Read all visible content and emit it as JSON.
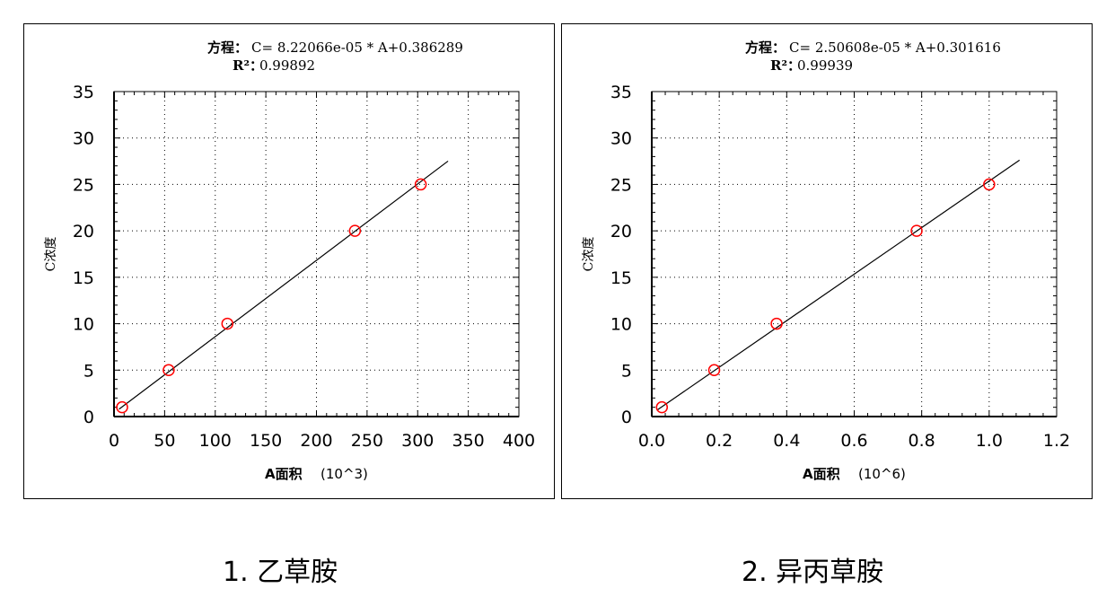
{
  "chart_data": [
    {
      "type": "scatter",
      "equation_label": "方程：",
      "equation": "C= 8.22066e-05 * A+0.386289",
      "r2_label": "R²：",
      "r2": "0.99892",
      "xlabel": "A面积",
      "xunit": "(10^3)",
      "ylabel": "C浓度",
      "xlim": [
        0,
        400
      ],
      "ylim": [
        0,
        35
      ],
      "xticks": [
        "0",
        "50",
        "100",
        "150",
        "200",
        "250",
        "300",
        "350",
        "400"
      ],
      "yticks": [
        "0",
        "5",
        "10",
        "15",
        "20",
        "25",
        "30",
        "35"
      ],
      "grid": true,
      "points": [
        {
          "x": 8,
          "y": 1.0
        },
        {
          "x": 54,
          "y": 5.0
        },
        {
          "x": 112,
          "y": 10.0
        },
        {
          "x": 238,
          "y": 20.0
        },
        {
          "x": 303,
          "y": 25.0
        }
      ],
      "fit": {
        "slope": 0.0822066,
        "intercept": 0.386289,
        "x_range": [
          5,
          330
        ]
      },
      "marker_color": "#ff0000",
      "line_color": "#000000"
    },
    {
      "type": "scatter",
      "equation_label": "方程：",
      "equation": "C= 2.50608e-05 * A+0.301616",
      "r2_label": "R²：",
      "r2": "0.99939",
      "xlabel": "A面积",
      "xunit": "(10^6)",
      "ylabel": "C浓度",
      "xlim": [
        0,
        1.2
      ],
      "ylim": [
        0,
        35
      ],
      "xticks": [
        "0.0",
        "0.2",
        "0.4",
        "0.6",
        "0.8",
        "1.0",
        "1.2"
      ],
      "yticks": [
        "0",
        "5",
        "10",
        "15",
        "20",
        "25",
        "30",
        "35"
      ],
      "grid": true,
      "points": [
        {
          "x": 0.03,
          "y": 1.0
        },
        {
          "x": 0.185,
          "y": 5.0
        },
        {
          "x": 0.37,
          "y": 10.0
        },
        {
          "x": 0.785,
          "y": 20.0
        },
        {
          "x": 1.0,
          "y": 25.0
        }
      ],
      "fit": {
        "slope": 25.0608,
        "intercept": 0.301616,
        "x_range": [
          0.015,
          1.09
        ]
      },
      "marker_color": "#ff0000",
      "line_color": "#000000"
    }
  ],
  "captions": [
    "1.  乙草胺",
    "2.  异丙草胺"
  ]
}
